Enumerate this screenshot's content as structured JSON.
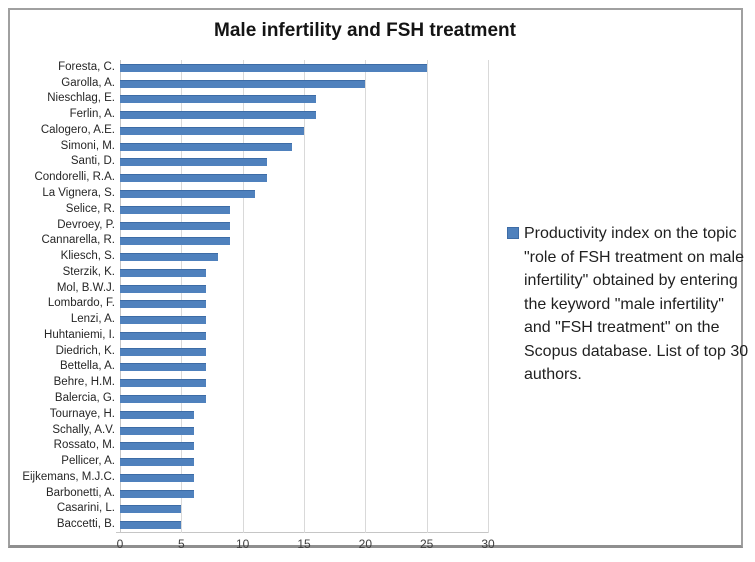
{
  "chart_data": {
    "type": "bar",
    "orientation": "horizontal",
    "title": "Male infertility and FSH treatment",
    "categories": [
      "Foresta, C.",
      "Garolla, A.",
      "Nieschlag, E.",
      "Ferlin, A.",
      "Calogero, A.E.",
      "Simoni, M.",
      "Santi, D.",
      "Condorelli, R.A.",
      "La Vignera, S.",
      "Selice, R.",
      "Devroey, P.",
      "Cannarella, R.",
      "Kliesch, S.",
      "Sterzik, K.",
      "Mol, B.W.J.",
      "Lombardo, F.",
      "Lenzi, A.",
      "Huhtaniemi, I.",
      "Diedrich, K.",
      "Bettella, A.",
      "Behre, H.M.",
      "Balercia, G.",
      "Tournaye, H.",
      "Schally, A.V.",
      "Rossato, M.",
      "Pellicer, A.",
      "Eijkemans, M.J.C.",
      "Barbonetti, A.",
      "Casarini, L.",
      "Baccetti, B."
    ],
    "values": [
      25,
      20,
      16,
      16,
      15,
      14,
      12,
      12,
      11,
      9,
      9,
      9,
      8,
      7,
      7,
      7,
      7,
      7,
      7,
      7,
      7,
      7,
      6,
      6,
      6,
      6,
      6,
      6,
      5,
      5
    ],
    "xlabel": "",
    "ylabel": "",
    "xlim": [
      0,
      30
    ],
    "xticks": [
      0,
      5,
      10,
      15,
      20,
      25,
      30
    ],
    "grid": true,
    "legend_position": "right",
    "legend_label": "Productivity index on the topic \"role of FSH treatment on male infertility\" obtained by entering the keyword \"male infertility\" and \"FSH treatment\" on the Scopus database. List of top 30 authors.",
    "bar_color": "#4f81bd",
    "gridline_color": "#d9d9d9"
  }
}
